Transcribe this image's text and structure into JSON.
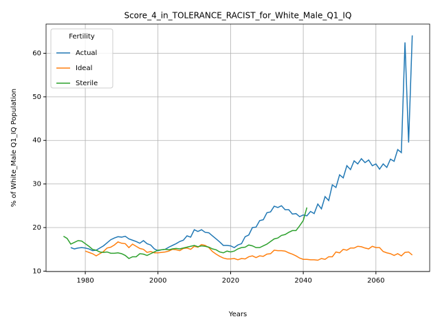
{
  "chart_data": {
    "type": "line",
    "title": "Score_4_in_TOLERANCE_RACIST_for_White_Male_Q1_IQ",
    "x_label": "Years",
    "y_label": "% of White_Male Q1_IQ Population",
    "legend_title": "Fertility",
    "legend_position": "upper left",
    "grid": true,
    "x": [
      1974,
      1975,
      1976,
      1977,
      1978,
      1979,
      1980,
      1981,
      1982,
      1983,
      1984,
      1985,
      1986,
      1987,
      1988,
      1989,
      1990,
      1991,
      1992,
      1993,
      1994,
      1995,
      1996,
      1997,
      1998,
      1999,
      2000,
      2001,
      2002,
      2003,
      2004,
      2005,
      2006,
      2007,
      2008,
      2009,
      2010,
      2011,
      2012,
      2013,
      2014,
      2015,
      2016,
      2017,
      2018,
      2019,
      2020,
      2021,
      2022,
      2023,
      2024,
      2025,
      2026,
      2027,
      2028,
      2029,
      2030,
      2031,
      2032,
      2033,
      2034,
      2035,
      2036,
      2037,
      2038,
      2039,
      2040,
      2041,
      2042,
      2043,
      2044,
      2045,
      2046,
      2047,
      2048,
      2049,
      2050,
      2051,
      2052,
      2053,
      2054,
      2055,
      2056,
      2057,
      2058,
      2059,
      2060,
      2061,
      2062,
      2063,
      2064,
      2065,
      2066,
      2067,
      2068,
      2069,
      2070
    ],
    "series": [
      {
        "name": "Actual",
        "color": "#1f77b4",
        "values": [
          null,
          null,
          15.4,
          15.1,
          15.3,
          15.4,
          15.3,
          15.1,
          14.7,
          14.8,
          15.3,
          15.8,
          16.5,
          17.2,
          17.6,
          17.9,
          17.8,
          18.0,
          17.4,
          17.1,
          16.8,
          16.4,
          17.0,
          16.3,
          16.0,
          15.1,
          14.7,
          14.9,
          15.0,
          15.5,
          15.9,
          16.3,
          16.8,
          17.1,
          18.1,
          17.8,
          19.5,
          19.1,
          19.5,
          18.9,
          18.8,
          18.1,
          17.4,
          16.7,
          15.9,
          15.9,
          15.8,
          15.4,
          16.0,
          16.3,
          17.9,
          18.3,
          20.0,
          20.1,
          21.6,
          21.8,
          23.4,
          23.6,
          24.9,
          24.6,
          25.0,
          24.1,
          24.1,
          23.1,
          23.2,
          22.5,
          22.9,
          22.7,
          23.7,
          23.2,
          25.4,
          24.3,
          27.1,
          26.2,
          29.8,
          29.2,
          32.1,
          31.4,
          34.2,
          33.3,
          35.3,
          34.6,
          35.8,
          34.9,
          35.5,
          34.2,
          34.6,
          33.4,
          34.6,
          33.8,
          35.7,
          35.2,
          37.9,
          37.2,
          62.5,
          39.5,
          64.1
        ]
      },
      {
        "name": "Ideal",
        "color": "#ff7f0e",
        "values": [
          null,
          null,
          null,
          null,
          null,
          null,
          14.6,
          14.3,
          14.0,
          13.5,
          14.0,
          14.5,
          15.3,
          15.5,
          16.0,
          16.7,
          16.4,
          16.3,
          15.4,
          16.2,
          15.7,
          15.2,
          15.0,
          14.3,
          14.5,
          14.2,
          14.2,
          14.3,
          14.4,
          14.6,
          15.0,
          14.9,
          14.7,
          15.2,
          15.3,
          15.0,
          15.7,
          15.5,
          16.1,
          15.9,
          15.4,
          14.5,
          13.9,
          13.4,
          13.0,
          12.8,
          12.8,
          12.9,
          12.6,
          12.9,
          12.8,
          13.3,
          13.5,
          13.1,
          13.5,
          13.4,
          13.9,
          14.0,
          14.8,
          14.7,
          14.7,
          14.6,
          14.2,
          13.9,
          13.5,
          13.0,
          12.7,
          12.7,
          12.6,
          12.6,
          12.5,
          12.9,
          12.7,
          13.3,
          13.3,
          14.4,
          14.2,
          15.0,
          14.8,
          15.3,
          15.3,
          15.7,
          15.6,
          15.3,
          15.1,
          15.7,
          15.4,
          15.4,
          14.5,
          14.2,
          14.0,
          13.6,
          14.0,
          13.5,
          14.3,
          14.4,
          13.7
        ]
      },
      {
        "name": "Sterile",
        "color": "#2ca02c",
        "values": [
          18.0,
          17.5,
          16.2,
          16.6,
          17.0,
          16.9,
          16.3,
          15.7,
          15.0,
          14.8,
          14.4,
          14.3,
          14.4,
          14.1,
          14.1,
          14.2,
          14.0,
          13.6,
          12.9,
          13.3,
          13.3,
          14.0,
          13.9,
          13.6,
          14.0,
          14.4,
          14.8,
          14.9,
          15.0,
          14.9,
          15.1,
          15.2,
          15.1,
          15.3,
          15.5,
          15.7,
          15.9,
          15.6,
          15.8,
          15.7,
          15.5,
          15.1,
          14.9,
          14.4,
          14.2,
          14.6,
          14.4,
          14.6,
          15.1,
          15.4,
          15.5,
          16.0,
          15.8,
          15.4,
          15.4,
          15.8,
          16.2,
          16.8,
          17.4,
          17.6,
          18.2,
          18.4,
          18.9,
          19.3,
          19.3,
          20.4,
          21.6,
          24.6,
          null,
          null,
          null,
          null,
          null,
          null,
          null,
          null,
          null,
          null,
          null,
          null,
          null,
          null,
          null,
          null,
          null,
          null,
          null,
          null,
          null,
          null,
          null,
          null,
          null,
          null,
          null,
          null,
          null
        ]
      }
    ],
    "xlim": [
      1969.2,
      2074.8
    ],
    "ylim": [
      9.9,
      66.7
    ],
    "xticks": [
      1980,
      2000,
      2020,
      2040,
      2060
    ],
    "yticks": [
      10,
      20,
      30,
      40,
      50,
      60
    ]
  }
}
